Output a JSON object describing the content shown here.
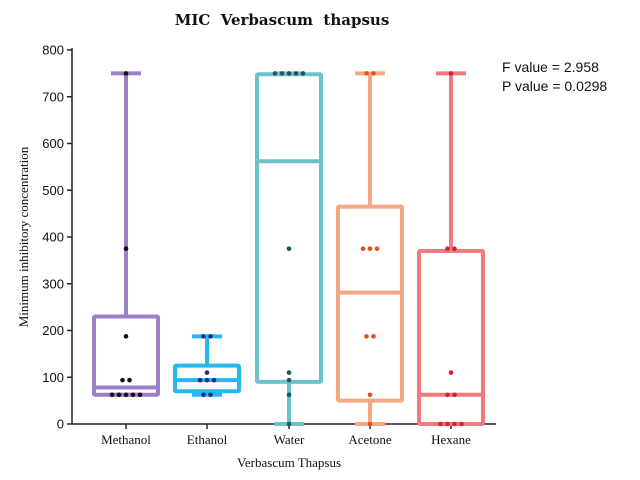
{
  "chart_data": {
    "type": "box",
    "title": "MIC  Verbascum  thapsus",
    "xlabel": "Verbascum Thapsus",
    "ylabel": "Minimum inhibitory concentration",
    "ylim": [
      0,
      800
    ],
    "yticks": [
      0,
      100,
      200,
      300,
      400,
      500,
      600,
      700,
      800
    ],
    "categories": [
      "Methanol",
      "Ethanol",
      "Water",
      "Acetone",
      "Hexane"
    ],
    "annotations": [
      "F value = 2.958",
      "P value = 0.0298"
    ],
    "series": [
      {
        "category": "Methanol",
        "color": "#9b7fc8",
        "min": 62.5,
        "q1": 62.5,
        "median": 78,
        "q3": 230,
        "max": 750,
        "points": [
          62.5,
          62.5,
          62.5,
          62.5,
          62.5,
          93.75,
          93.75,
          187.5,
          375,
          750
        ],
        "point_color": "#111111"
      },
      {
        "category": "Ethanol",
        "color": "#29b6f0",
        "min": 62.5,
        "q1": 70,
        "median": 93.75,
        "q3": 125,
        "max": 187.5,
        "points": [
          62.5,
          62.5,
          93.75,
          93.75,
          93.75,
          110,
          187.5,
          187.5
        ],
        "point_color": "#1a2f80"
      },
      {
        "category": "Water",
        "color": "#6cc2c8",
        "min": 0,
        "q1": 90,
        "median": 562,
        "q3": 748,
        "max": 750,
        "points": [
          0,
          62.5,
          93.75,
          110,
          375,
          750,
          750,
          750,
          750,
          750
        ],
        "point_color": "#1f5560"
      },
      {
        "category": "Acetone",
        "color": "#f5a883",
        "min": 0,
        "q1": 50,
        "median": 281,
        "q3": 465,
        "max": 750,
        "points": [
          0,
          62.5,
          187.5,
          187.5,
          375,
          375,
          375,
          750,
          750
        ],
        "point_color": "#e4501e"
      },
      {
        "category": "Hexane",
        "color": "#ef7a80",
        "min": 0,
        "q1": 0,
        "median": 62.5,
        "q3": 370,
        "max": 750,
        "points": [
          0,
          0,
          0,
          0,
          62.5,
          62.5,
          110,
          375,
          375,
          750
        ],
        "point_color": "#d8202a"
      }
    ]
  }
}
